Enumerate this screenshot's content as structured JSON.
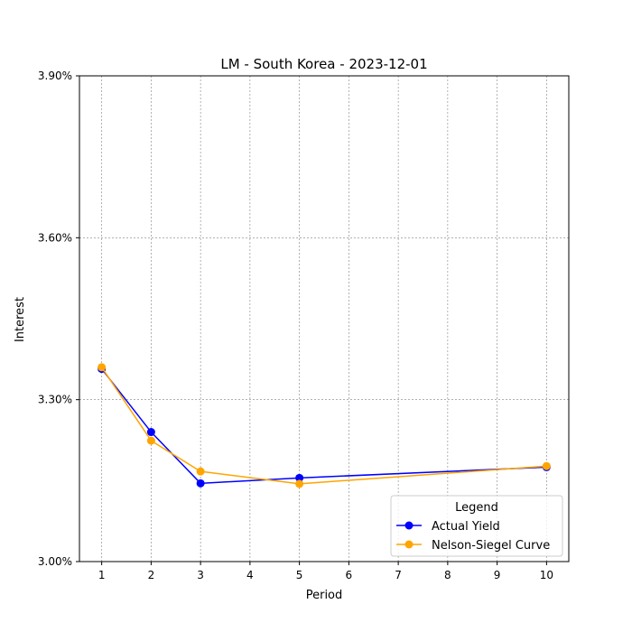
{
  "chart_data": {
    "type": "line",
    "title": "LM - South Korea - 2023-12-01",
    "xlabel": "Period",
    "ylabel": "Interest",
    "xlim": [
      0.55,
      10.45
    ],
    "ylim": [
      3.0,
      3.9
    ],
    "x_ticks": [
      1,
      2,
      3,
      4,
      5,
      6,
      7,
      8,
      9,
      10
    ],
    "x_tick_labels": [
      "1",
      "2",
      "3",
      "4",
      "5",
      "6",
      "7",
      "8",
      "9",
      "10"
    ],
    "y_ticks": [
      3.0,
      3.3,
      3.6,
      3.9
    ],
    "y_tick_labels": [
      "3.00%",
      "3.30%",
      "3.60%",
      "3.90%"
    ],
    "grid": true,
    "legend": {
      "title": "Legend",
      "placement": "lower-right"
    },
    "series": [
      {
        "name": "Actual Yield",
        "color": "#0000ff",
        "x": [
          1,
          2,
          3,
          5,
          10
        ],
        "y": [
          3.357,
          3.24,
          3.145,
          3.155,
          3.175
        ]
      },
      {
        "name": "Nelson-Siegel Curve",
        "color": "#ffa500",
        "x": [
          1,
          2,
          3,
          5,
          10
        ],
        "y": [
          3.36,
          3.224,
          3.167,
          3.144,
          3.177
        ]
      }
    ]
  }
}
